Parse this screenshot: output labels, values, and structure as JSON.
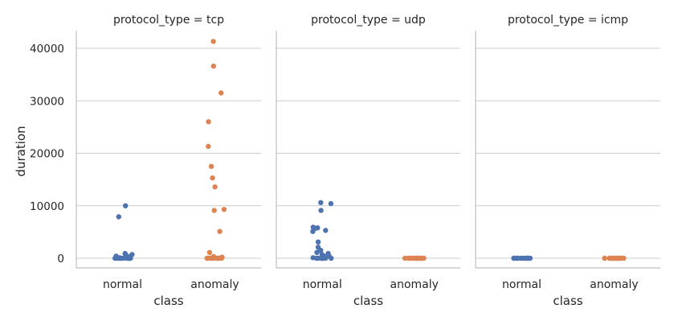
{
  "chart_data": {
    "type": "scatter",
    "ylabel": "duration",
    "xlabel": "class",
    "categories": [
      "normal",
      "anomaly"
    ],
    "ylim": [
      -2000,
      43500
    ],
    "yticks": [
      0,
      10000,
      20000,
      30000,
      40000
    ],
    "grid": "horizontal",
    "colors": {
      "normal": "#4c72b0",
      "anomaly": "#dd8452"
    },
    "facets": [
      {
        "title": "protocol_type = tcp",
        "series": [
          {
            "category": "normal",
            "values": [
              10000,
              7900,
              900,
              700,
              600,
              500,
              400,
              300,
              200,
              150,
              100,
              80,
              60,
              40,
              30,
              20,
              10,
              5,
              0,
              0,
              0,
              0,
              0,
              0,
              0,
              0,
              0,
              0
            ]
          },
          {
            "category": "anomaly",
            "values": [
              41300,
              36600,
              31500,
              26000,
              21300,
              17500,
              15300,
              13600,
              9300,
              9100,
              5100,
              1100,
              300,
              200,
              100,
              50,
              0,
              0,
              0,
              0,
              0,
              0,
              0,
              0,
              0,
              0,
              0,
              0
            ]
          }
        ]
      },
      {
        "title": "protocol_type = udp",
        "series": [
          {
            "category": "normal",
            "values": [
              10600,
              10400,
              9100,
              5900,
              5800,
              5700,
              5300,
              5100,
              3100,
              2100,
              1500,
              1100,
              900,
              700,
              500,
              400,
              300,
              200,
              100,
              50,
              0,
              0,
              0,
              0,
              0,
              0,
              0,
              0
            ]
          },
          {
            "category": "anomaly",
            "values": [
              0,
              0,
              0,
              0,
              0,
              0,
              0,
              0,
              0,
              0,
              0,
              0,
              0,
              0,
              0,
              0
            ]
          }
        ]
      },
      {
        "title": "protocol_type = icmp",
        "series": [
          {
            "category": "normal",
            "values": [
              0,
              0,
              0,
              0,
              0,
              0,
              0,
              0,
              0,
              0,
              0,
              0
            ]
          },
          {
            "category": "anomaly",
            "values": [
              0,
              0,
              0,
              0,
              0,
              0,
              0,
              0,
              0,
              0,
              0,
              0,
              0,
              0,
              0,
              0
            ]
          }
        ]
      }
    ]
  }
}
